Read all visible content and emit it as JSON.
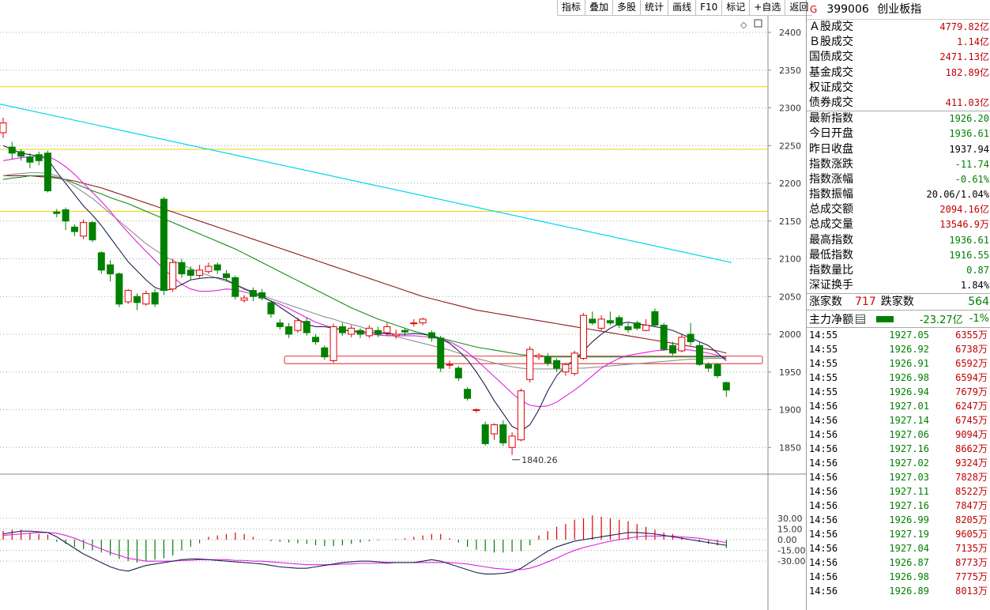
{
  "toolbar": [
    "指标",
    "叠加",
    "多股",
    "统计",
    "画线",
    "F10",
    "标记",
    "+自选",
    "返回"
  ],
  "stock": {
    "flag": "G",
    "code": "399006",
    "name": "创业板指"
  },
  "market": [
    {
      "label": "Ａ股成交",
      "value": "4779.82亿"
    },
    {
      "label": "Ｂ股成交",
      "value": "1.14亿"
    },
    {
      "label": "国债成交",
      "value": "2471.13亿"
    },
    {
      "label": "基金成交",
      "value": "182.89亿"
    },
    {
      "label": "权证成交",
      "value": ""
    },
    {
      "label": "债券成交",
      "value": "411.03亿"
    }
  ],
  "index": [
    {
      "label": "最新指数",
      "value": "1926.20",
      "color": "#008000"
    },
    {
      "label": "今日开盘",
      "value": "1936.61",
      "color": "#008000"
    },
    {
      "label": "昨日收盘",
      "value": "1937.94",
      "color": "#000000"
    },
    {
      "label": "指数涨跌",
      "value": "-11.74",
      "color": "#008000"
    },
    {
      "label": "指数涨幅",
      "value": "-0.61%",
      "color": "#008000"
    },
    {
      "label": "指数振幅",
      "value": "20.06/1.04%",
      "color": "#000000"
    },
    {
      "label": "总成交额",
      "value": "2094.16亿",
      "color": "#c00000"
    },
    {
      "label": "总成交量",
      "value": "13546.9万",
      "color": "#c00000"
    },
    {
      "label": "最高指数",
      "value": "1936.61",
      "color": "#008000"
    },
    {
      "label": "最低指数",
      "value": "1916.55",
      "color": "#008000"
    },
    {
      "label": "指数量比",
      "value": "0.87",
      "color": "#008000"
    },
    {
      "label": "深证换手",
      "value": "1.84%",
      "color": "#000000"
    }
  ],
  "breadth": {
    "up_label": "涨家数",
    "up": "717",
    "down_label": "跌家数",
    "down": "564"
  },
  "mainflow": {
    "label": "主力净额",
    "value": "-23.27亿",
    "pct": "-1%"
  },
  "ticks": [
    [
      "14:55",
      "1927.05",
      "6355万"
    ],
    [
      "14:55",
      "1926.92",
      "6738万"
    ],
    [
      "14:55",
      "1926.91",
      "6592万"
    ],
    [
      "14:55",
      "1926.98",
      "6594万"
    ],
    [
      "14:55",
      "1926.94",
      "7679万"
    ],
    [
      "14:56",
      "1927.01",
      "6247万"
    ],
    [
      "14:56",
      "1927.14",
      "6745万"
    ],
    [
      "14:56",
      "1927.06",
      "9094万"
    ],
    [
      "14:56",
      "1927.16",
      "8662万"
    ],
    [
      "14:56",
      "1927.02",
      "9324万"
    ],
    [
      "14:56",
      "1927.03",
      "7828万"
    ],
    [
      "14:56",
      "1927.11",
      "8522万"
    ],
    [
      "14:56",
      "1927.16",
      "7847万"
    ],
    [
      "14:56",
      "1926.99",
      "8205万"
    ],
    [
      "14:56",
      "1927.19",
      "9605万"
    ],
    [
      "14:56",
      "1927.04",
      "7135万"
    ],
    [
      "14:56",
      "1926.87",
      "8773万"
    ],
    [
      "14:56",
      "1926.98",
      "7775万"
    ],
    [
      "14:56",
      "1926.89",
      "8013万"
    ]
  ],
  "chart_data": {
    "type": "candlestick",
    "price_ticks": [
      "2400",
      "2350",
      "2300",
      "2250",
      "2200",
      "2150",
      "2100",
      "2050",
      "2000",
      "1950",
      "1900",
      "1850"
    ],
    "osc_ticks": [
      "30.00",
      "15.00",
      "0.00",
      "-15.00",
      "-30.00"
    ],
    "low_label": "1840.26",
    "candles": [
      [
        2267,
        2280,
        2287,
        2260
      ],
      [
        2248,
        2240,
        2255,
        2232
      ],
      [
        2242,
        2236,
        2245,
        2230
      ],
      [
        2235,
        2228,
        2240,
        2220
      ],
      [
        2238,
        2230,
        2242,
        2224
      ],
      [
        2240,
        2190,
        2243,
        2188
      ],
      [
        2162,
        2160,
        2166,
        2155
      ],
      [
        2165,
        2150,
        2168,
        2138
      ],
      [
        2142,
        2136,
        2146,
        2130
      ],
      [
        2130,
        2148,
        2152,
        2126
      ],
      [
        2148,
        2125,
        2150,
        2122
      ],
      [
        2108,
        2085,
        2110,
        2080
      ],
      [
        2092,
        2080,
        2098,
        2070
      ],
      [
        2080,
        2040,
        2082,
        2036
      ],
      [
        2043,
        2058,
        2060,
        2040
      ],
      [
        2050,
        2042,
        2054,
        2032
      ],
      [
        2040,
        2054,
        2058,
        2038
      ],
      [
        2055,
        2040,
        2060,
        2036
      ],
      [
        2179,
        2058,
        2182,
        2052
      ],
      [
        2060,
        2095,
        2100,
        2056
      ],
      [
        2095,
        2080,
        2100,
        2075
      ],
      [
        2085,
        2078,
        2090,
        2072
      ],
      [
        2078,
        2085,
        2092,
        2075
      ],
      [
        2083,
        2090,
        2095,
        2080
      ],
      [
        2092,
        2085,
        2095,
        2080
      ],
      [
        2080,
        2075,
        2085,
        2070
      ],
      [
        2075,
        2050,
        2078,
        2046
      ],
      [
        2045,
        2048,
        2052,
        2042
      ],
      [
        2058,
        2050,
        2062,
        2044
      ],
      [
        2055,
        2048,
        2060,
        2045
      ],
      [
        2042,
        2027,
        2045,
        2022
      ],
      [
        2015,
        2010,
        2020,
        2006
      ],
      [
        2010,
        2000,
        2015,
        1995
      ],
      [
        2005,
        2018,
        2022,
        2002
      ],
      [
        2017,
        2002,
        2022,
        1998
      ],
      [
        1996,
        1990,
        2000,
        1986
      ],
      [
        1982,
        1970,
        1985,
        1966
      ],
      [
        1965,
        2010,
        2014,
        1962
      ],
      [
        2010,
        2002,
        2015,
        1998
      ],
      [
        2000,
        2008,
        2012,
        1996
      ],
      [
        2005,
        2000,
        2008,
        1995
      ],
      [
        1998,
        2008,
        2012,
        1995
      ],
      [
        2005,
        2000,
        2010,
        1996
      ],
      [
        2002,
        2010,
        2015,
        1998
      ],
      [
        1998,
        2000,
        2006,
        1994
      ],
      [
        2005,
        2003,
        2008,
        1998
      ],
      [
        2015,
        2015,
        2020,
        2010
      ],
      [
        2015,
        2020,
        2022,
        2012
      ],
      [
        2002,
        1995,
        2005,
        1990
      ],
      [
        1995,
        1955,
        1998,
        1950
      ],
      [
        1960,
        1960,
        1965,
        1954
      ],
      [
        1955,
        1942,
        1958,
        1938
      ],
      [
        1927,
        1915,
        1930,
        1912
      ],
      [
        1900,
        1900,
        1902,
        1896
      ],
      [
        1880,
        1855,
        1884,
        1852
      ],
      [
        1868,
        1880,
        1882,
        1860
      ],
      [
        1880,
        1856,
        1886,
        1852
      ],
      [
        1850,
        1865,
        1870,
        1840
      ],
      [
        1860,
        1925,
        1928,
        1858
      ],
      [
        1940,
        1980,
        1984,
        1936
      ],
      [
        1970,
        1972,
        1975,
        1966
      ],
      [
        1970,
        1962,
        1975,
        1958
      ],
      [
        1965,
        1955,
        1968,
        1950
      ],
      [
        1950,
        1960,
        1962,
        1945
      ],
      [
        1948,
        1975,
        1978,
        1945
      ],
      [
        1968,
        2025,
        2028,
        1966
      ],
      [
        2020,
        2015,
        2030,
        2012
      ],
      [
        2008,
        2020,
        2025,
        2005
      ],
      [
        2018,
        2015,
        2030,
        2012
      ],
      [
        2022,
        2012,
        2025,
        2008
      ],
      [
        2010,
        2006,
        2015,
        2002
      ],
      [
        2015,
        2008,
        2018,
        2005
      ],
      [
        2005,
        2012,
        2020,
        2004
      ],
      [
        2030,
        2012,
        2034,
        2010
      ],
      [
        2012,
        1980,
        2015,
        1978
      ],
      [
        1985,
        1975,
        1990,
        1972
      ],
      [
        1978,
        1996,
        2000,
        1976
      ],
      [
        2000,
        1990,
        2015,
        1985
      ],
      [
        1985,
        1960,
        1990,
        1958
      ],
      [
        1960,
        1955,
        1963,
        1950
      ],
      [
        1960,
        1945,
        1962,
        1942
      ],
      [
        1936,
        1926,
        1937,
        1917
      ]
    ],
    "ma_white": [
      2250,
      2245,
      2240,
      2238,
      2236,
      2232,
      2215,
      2200,
      2185,
      2170,
      2158,
      2144,
      2128,
      2112,
      2096,
      2084,
      2072,
      2062,
      2058,
      2060,
      2066,
      2072,
      2074,
      2075,
      2075,
      2072,
      2066,
      2060,
      2055,
      2050,
      2044,
      2036,
      2028,
      2020,
      2013,
      2010,
      2010,
      2008,
      2006,
      2004,
      2004,
      2002,
      2002,
      2001,
      2000,
      2000,
      2001,
      2000,
      1998,
      1994,
      1988,
      1978,
      1966,
      1950,
      1932,
      1912,
      1895,
      1878,
      1872,
      1880,
      1900,
      1925,
      1945,
      1958,
      1966,
      1978,
      1990,
      2000,
      2008,
      2014,
      2016,
      2014,
      2012,
      2010,
      2008,
      2005,
      2000,
      1995,
      1990,
      1985,
      1975,
      1965
    ],
    "ma_magenta": [
      2230,
      2232,
      2234,
      2235,
      2236,
      2236,
      2230,
      2222,
      2212,
      2200,
      2188,
      2176,
      2163,
      2148,
      2135,
      2122,
      2110,
      2098,
      2086,
      2076,
      2066,
      2060,
      2057,
      2057,
      2058,
      2060,
      2059,
      2056,
      2053,
      2049,
      2044,
      2040,
      2034,
      2028,
      2022,
      2016,
      2012,
      2008,
      2006,
      2004,
      2002,
      2000,
      1999,
      1998,
      1998,
      1998,
      1998,
      1997,
      1996,
      1994,
      1990,
      1984,
      1976,
      1966,
      1955,
      1944,
      1933,
      1922,
      1912,
      1906,
      1904,
      1905,
      1910,
      1918,
      1926,
      1935,
      1945,
      1955,
      1962,
      1968,
      1972,
      1974,
      1976,
      1978,
      1979,
      1980,
      1980,
      1979,
      1977,
      1975,
      1972,
      1968
    ],
    "ma_gray": [
      2210,
      2212,
      2213,
      2214,
      2214,
      2213,
      2210,
      2204,
      2196,
      2188,
      2180,
      2170,
      2160,
      2150,
      2140,
      2130,
      2120,
      2112,
      2104,
      2098,
      2092,
      2087,
      2082,
      2078,
      2074,
      2070,
      2066,
      2061,
      2056,
      2052,
      2047,
      2043,
      2039,
      2035,
      2031,
      2027,
      2023,
      2020,
      2016,
      2013,
      2010,
      2006,
      2003,
      2000,
      1997,
      1994,
      1991,
      1988,
      1985,
      1982,
      1979,
      1975,
      1972,
      1968,
      1965,
      1962,
      1959,
      1957,
      1955,
      1954,
      1954,
      1954,
      1954,
      1954,
      1955,
      1955,
      1956,
      1957,
      1958,
      1959,
      1960,
      1961,
      1962,
      1963,
      1964,
      1965,
      1966,
      1967,
      1967,
      1968,
      1968,
      1968
    ],
    "ma_green": [
      2205,
      2207,
      2208,
      2210,
      2210,
      2210,
      2208,
      2205,
      2200,
      2195,
      2190,
      2186,
      2181,
      2177,
      2173,
      2168,
      2163,
      2158,
      2153,
      2148,
      2143,
      2138,
      2133,
      2128,
      2123,
      2118,
      2113,
      2107,
      2101,
      2095,
      2089,
      2083,
      2077,
      2071,
      2065,
      2059,
      2053,
      2047,
      2041,
      2035,
      2030,
      2025,
      2020,
      2016,
      2012,
      2008,
      2004,
      2001,
      1998,
      1995,
      1992,
      1989,
      1986,
      1983,
      1981,
      1979,
      1977,
      1975,
      1973,
      1972,
      1971,
      1970,
      1970,
      1970,
      1970,
      1970,
      1970,
      1970,
      1970,
      1970,
      1970,
      1970,
      1970,
      1970,
      1970,
      1970,
      1970,
      1970,
      1970,
      1970,
      1970,
      1970
    ],
    "ma_darkred": [
      2210,
      2210,
      2210,
      2210,
      2209,
      2208,
      2207,
      2205,
      2203,
      2200,
      2197,
      2194,
      2190,
      2186,
      2182,
      2178,
      2174,
      2170,
      2166,
      2162,
      2158,
      2154,
      2150,
      2146,
      2142,
      2138,
      2134,
      2130,
      2126,
      2122,
      2118,
      2114,
      2110,
      2106,
      2102,
      2098,
      2094,
      2090,
      2086,
      2082,
      2078,
      2074,
      2070,
      2066,
      2062,
      2058,
      2054,
      2050,
      2047,
      2044,
      2041,
      2038,
      2035,
      2032,
      2030,
      2028,
      2026,
      2024,
      2022,
      2020,
      2018,
      2016,
      2014,
      2012,
      2010,
      2008,
      2006,
      2004,
      2002,
      2000,
      1998,
      1996,
      1994,
      1992,
      1990,
      1988,
      1986,
      1984,
      1982,
      1980,
      1978,
      1975
    ],
    "ma_cyan_end": [
      2305,
      2095
    ],
    "hlines": [
      2328,
      2245,
      2163
    ],
    "support_band": [
      1961,
      1971
    ],
    "macd": [
      12,
      14,
      14,
      10,
      8,
      7,
      -3,
      -6,
      -10,
      -13,
      -15,
      -18,
      -22,
      -27,
      -30,
      -32,
      -30,
      -28,
      -26,
      -22,
      -15,
      -10,
      -5,
      4,
      6,
      8,
      10,
      8,
      4,
      0,
      -2,
      -3,
      -4,
      -5,
      -6,
      -8,
      -9,
      -9,
      -8,
      -6,
      -4,
      -2,
      -1,
      0,
      1,
      2,
      4,
      6,
      8,
      8,
      2,
      -4,
      -10,
      -14,
      -16,
      -18,
      -18,
      -17,
      -16,
      -8,
      6,
      12,
      18,
      22,
      28,
      30,
      34,
      32,
      30,
      28,
      26,
      22,
      18,
      14,
      10,
      8,
      4,
      0,
      -3,
      -6,
      -8,
      -12
    ],
    "dif": [
      8,
      10,
      12,
      12,
      11,
      10,
      4,
      -4,
      -12,
      -20,
      -26,
      -32,
      -38,
      -42,
      -44,
      -40,
      -36,
      -34,
      -32,
      -30,
      -28,
      -27,
      -27,
      -28,
      -29,
      -30,
      -31,
      -32,
      -33,
      -34,
      -36,
      -38,
      -39,
      -40,
      -40,
      -38,
      -36,
      -34,
      -32,
      -31,
      -30,
      -30,
      -31,
      -32,
      -32,
      -32,
      -32,
      -30,
      -28,
      -30,
      -34,
      -38,
      -42,
      -46,
      -48,
      -48,
      -47,
      -45,
      -40,
      -32,
      -24,
      -16,
      -10,
      -6,
      -2,
      0,
      2,
      4,
      6,
      8,
      10,
      10,
      9,
      8,
      6,
      4,
      2,
      0,
      -2,
      -4,
      -6,
      -8
    ],
    "dea": [
      6,
      7,
      8,
      9,
      10,
      10,
      9,
      6,
      2,
      -3,
      -8,
      -13,
      -18,
      -22,
      -26,
      -28,
      -30,
      -30,
      -30,
      -30,
      -29,
      -29,
      -28,
      -28,
      -28,
      -28,
      -29,
      -29,
      -30,
      -30,
      -31,
      -32,
      -33,
      -34,
      -35,
      -35,
      -35,
      -35,
      -34,
      -34,
      -33,
      -33,
      -33,
      -33,
      -32,
      -32,
      -32,
      -32,
      -32,
      -32,
      -32,
      -33,
      -34,
      -36,
      -38,
      -40,
      -41,
      -42,
      -42,
      -40,
      -36,
      -31,
      -26,
      -20,
      -15,
      -11,
      -8,
      -5,
      -2,
      0,
      2,
      4,
      5,
      5,
      5,
      5,
      4,
      3,
      2,
      0,
      -2,
      -4
    ]
  }
}
